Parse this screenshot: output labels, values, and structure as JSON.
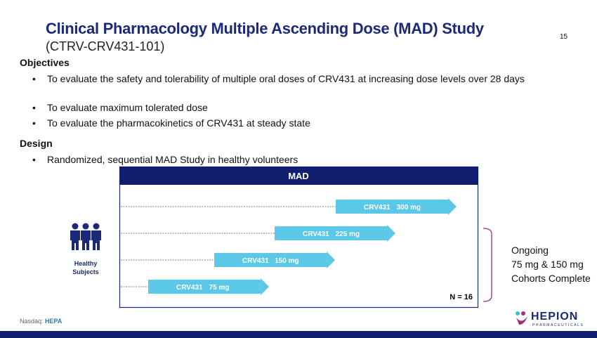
{
  "header": {
    "title": "Clinical Pharmacology Multiple Ascending Dose (MAD) Study",
    "subtitle": "(CTRV-CRV431-101)",
    "page_number": "15"
  },
  "objectives": {
    "heading": "Objectives",
    "bullets": [
      "To evaluate the safety and tolerability of multiple oral doses of CRV431 at increasing dose levels over 28 days",
      "To evaluate maximum tolerated dose",
      "To evaluate the pharmacokinetics of CRV431 at steady state"
    ]
  },
  "design": {
    "heading": "Design",
    "bullets": [
      "Randomized, sequential MAD Study in healthy volunteers"
    ]
  },
  "diagram": {
    "header": "MAD",
    "subjects_label": "Healthy Subjects",
    "n_label": "N = 16",
    "arms": [
      {
        "drug": "CRV431",
        "dose": "300 mg"
      },
      {
        "drug": "CRV431",
        "dose": "225 mg"
      },
      {
        "drug": "CRV431",
        "dose": "150 mg"
      },
      {
        "drug": "CRV431",
        "dose": "75 mg"
      }
    ],
    "status_lines": [
      "Ongoing",
      "75 mg & 150 mg",
      "Cohorts Complete"
    ]
  },
  "footer": {
    "exchange": "Nasdaq:",
    "ticker": "HEPA",
    "logo": "HEPION",
    "logo_sub": "PHARMACEUTICALS"
  }
}
